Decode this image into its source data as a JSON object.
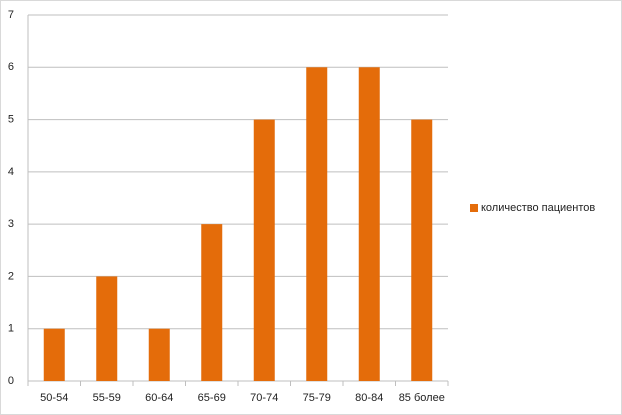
{
  "chart_data": {
    "type": "bar",
    "categories": [
      "50-54",
      "55-59",
      "60-64",
      "65-69",
      "70-74",
      "75-79",
      "80-84",
      "85 более"
    ],
    "series": [
      {
        "name": "количество пациентов",
        "color": "#e46c0a",
        "values": [
          1,
          2,
          1,
          3,
          5,
          6,
          6,
          5
        ]
      }
    ],
    "ylim": [
      0,
      7
    ],
    "yticks": [
      0,
      1,
      2,
      3,
      4,
      5,
      6,
      7
    ],
    "grid": true,
    "legend": "right"
  }
}
